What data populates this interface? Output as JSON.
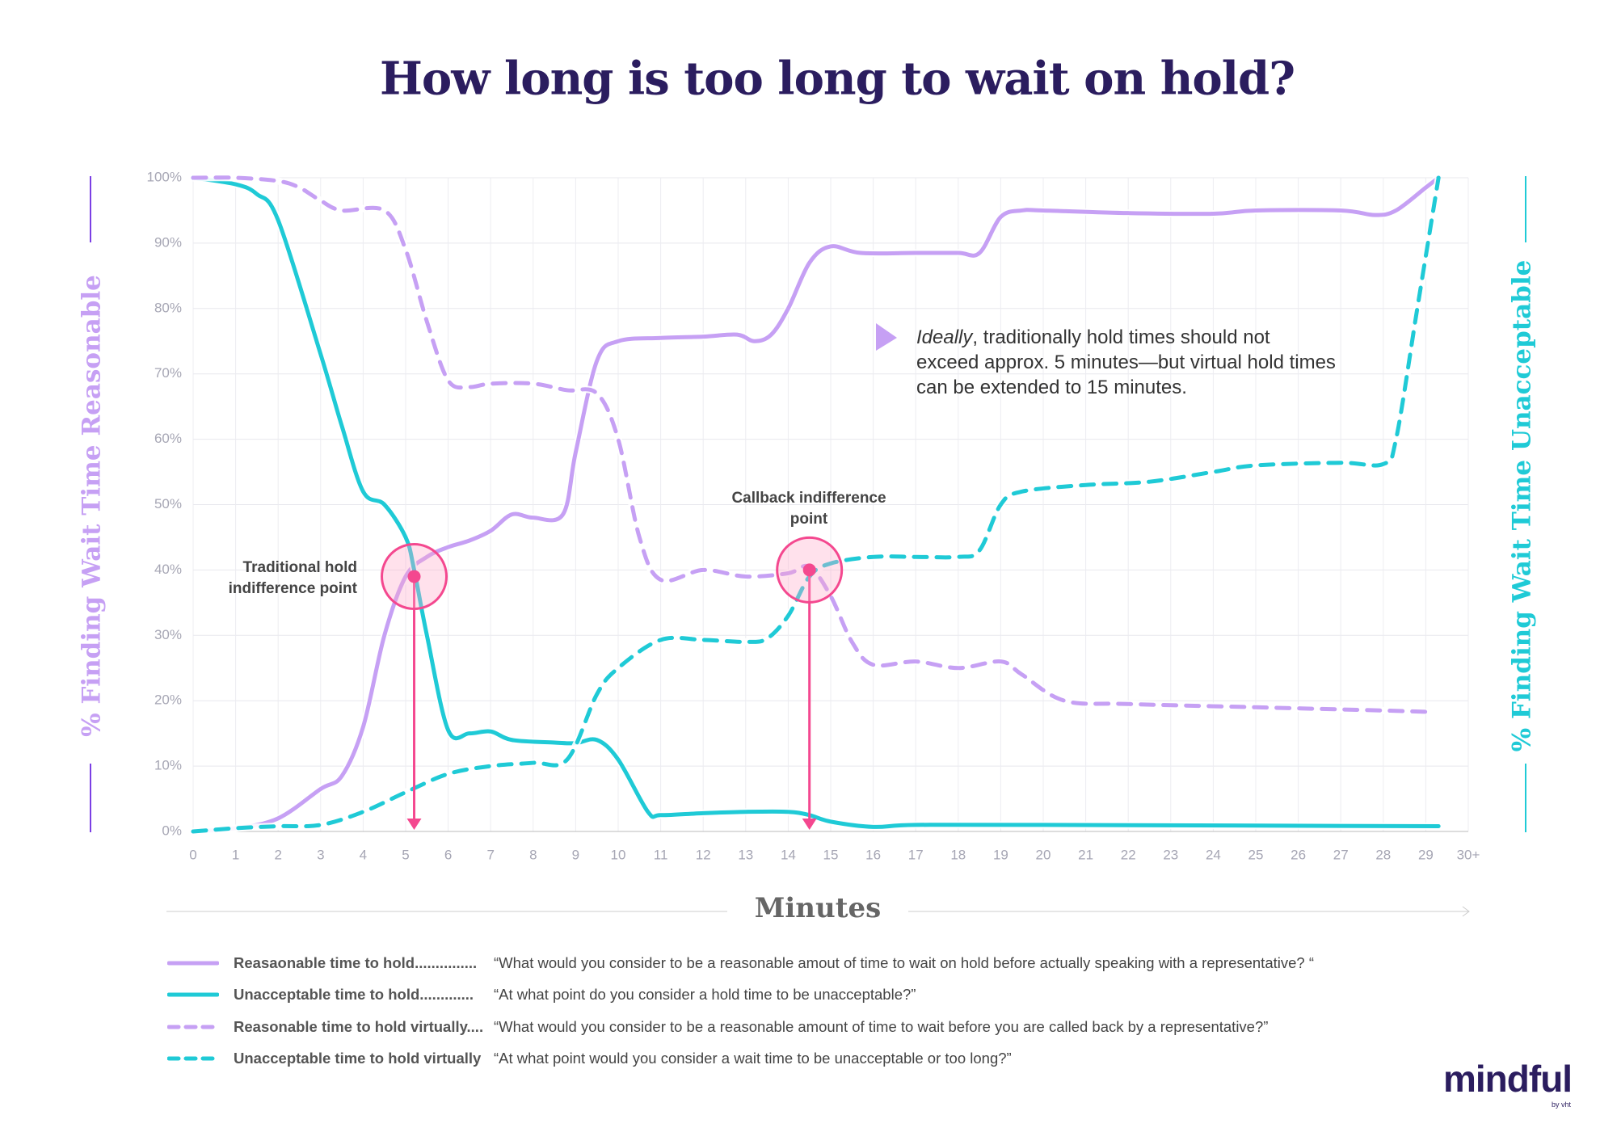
{
  "chart_data": {
    "type": "line",
    "title": "How long is too long to wait on hold?",
    "x_label": "Minutes",
    "y_label": "% Finding Wait Time Reasonable",
    "y2_label": "% Finding Wait Time Unacceptable",
    "xlim": [
      0,
      30
    ],
    "xticks": [
      0,
      1,
      2,
      3,
      4,
      5,
      6,
      7,
      8,
      9,
      10,
      11,
      12,
      13,
      14,
      15,
      16,
      17,
      18,
      19,
      20,
      21,
      22,
      23,
      24,
      25,
      26,
      27,
      28,
      29,
      {
        "value": 30,
        "label": "30+"
      }
    ],
    "ylim": [
      0,
      100
    ],
    "yticks": [
      {
        "value": 0,
        "label": "0%"
      },
      {
        "value": 10,
        "label": "10%"
      },
      {
        "value": 20,
        "label": "20%"
      },
      {
        "value": 30,
        "label": "30%"
      },
      {
        "value": 40,
        "label": "40%"
      },
      {
        "value": 50,
        "label": "50%"
      },
      {
        "value": 60,
        "label": "60%"
      },
      {
        "value": 70,
        "label": "70%"
      },
      {
        "value": 80,
        "label": "80%"
      },
      {
        "value": 90,
        "label": "90%"
      },
      {
        "value": 100,
        "label": "100%"
      }
    ],
    "grid": true,
    "series": [
      {
        "name": "Reasaonable time to hold...............",
        "description": "“What would you consider to be a reasonable amout of time to wait on hold before actually speaking with a representative? “",
        "color": "#c6a0f4",
        "dashed": false,
        "x": [
          0,
          1,
          2,
          3,
          3.5,
          4,
          4.5,
          5,
          5.5,
          6,
          6.5,
          7,
          7.5,
          8,
          8.7,
          9,
          9.5,
          10,
          11,
          12,
          12.8,
          13.2,
          13.6,
          14,
          14.5,
          15,
          15.7,
          17,
          18,
          18.5,
          19,
          19.5,
          20,
          22,
          24,
          25,
          27,
          27.8,
          28.3,
          29,
          29.3
        ],
        "values": [
          0,
          0.5,
          2,
          6.5,
          8.5,
          16,
          30,
          39,
          42,
          43.5,
          44.5,
          46,
          48.5,
          48,
          48.5,
          58,
          72,
          75,
          75.5,
          75.7,
          76,
          75,
          76,
          80,
          87,
          89.5,
          88.5,
          88.5,
          88.5,
          88.5,
          94,
          95,
          95,
          94.6,
          94.5,
          95,
          95,
          94.3,
          95,
          98.5,
          100
        ]
      },
      {
        "name": "Unacceptable time to hold.............",
        "description": "“At what point do you consider a hold time to be unacceptable?”",
        "color": "#1fcad6",
        "dashed": false,
        "x": [
          0,
          1,
          1.5,
          2,
          3,
          3.5,
          4,
          4.5,
          5,
          5.2,
          5.5,
          6,
          6.5,
          7,
          7.5,
          8.5,
          9,
          9.5,
          10,
          10.7,
          11,
          12,
          13,
          14,
          14.5,
          15,
          16,
          17,
          20,
          29.3
        ],
        "values": [
          100,
          99,
          97.5,
          93.5,
          73,
          62,
          52,
          50,
          45,
          40,
          30,
          15.5,
          15,
          15.3,
          14,
          13.6,
          13.5,
          14,
          11,
          3,
          2.5,
          2.8,
          3,
          3,
          2.5,
          1.5,
          0.7,
          1,
          1,
          0.8
        ]
      },
      {
        "name": "Reasonable time to hold virtually....",
        "description": "“What would you consider to be a reasonable amount of time to wait before you are called back by a representative?”",
        "color": "#c6a0f4",
        "dashed": true,
        "x": [
          0,
          1,
          2,
          2.5,
          3,
          3.5,
          4.5,
          5,
          5.5,
          6,
          6.5,
          7,
          8,
          8.8,
          9.5,
          10,
          10.5,
          11,
          12,
          13,
          14,
          14.5,
          15,
          15.5,
          16,
          17,
          18,
          19,
          19.5,
          20.5,
          22,
          25,
          28,
          29
        ],
        "values": [
          100,
          100,
          99.5,
          98.5,
          96.5,
          95,
          95,
          89,
          78,
          69,
          68,
          68.5,
          68.5,
          67.5,
          67,
          60,
          45,
          38.5,
          40,
          39,
          39.5,
          40.5,
          36,
          29,
          25.5,
          26,
          25,
          26,
          24,
          20,
          19.5,
          19,
          18.5,
          18.3
        ]
      },
      {
        "name": "Unacceptable time to hold virtually",
        "description": "“At what point would you consider a wait time to be unacceptable or too long?”",
        "color": "#1fcad6",
        "dashed": true,
        "x": [
          0,
          1,
          2,
          3,
          4,
          5,
          6,
          7,
          8,
          8.8,
          9.5,
          10,
          11,
          12,
          13,
          13.5,
          14,
          14.5,
          15,
          16,
          17,
          18,
          18.5,
          19,
          19.5,
          21,
          22.5,
          24,
          25,
          27,
          28,
          28.3,
          28.8,
          29.3
        ],
        "values": [
          0,
          0.5,
          0.8,
          1,
          3,
          6,
          8.8,
          10,
          10.5,
          11,
          21,
          25,
          29.3,
          29.3,
          29,
          29.5,
          33,
          39,
          41,
          42,
          42,
          42,
          43,
          50,
          52,
          53,
          53.5,
          55,
          56,
          56.4,
          56.2,
          60,
          80,
          100
        ]
      }
    ],
    "annotations": [
      {
        "text": "Traditional hold indifference point",
        "x": 5.2,
        "y": 39
      },
      {
        "text": "Callback indifference point",
        "x": 14.5,
        "y": 40
      }
    ],
    "note": {
      "emphasis": "Ideally",
      "text": ", traditionally hold times should not exceed approx. 5 minutes—but virtual hold times can be extended to 15 minutes."
    },
    "logo": {
      "name": "mindful",
      "byline": "by vht"
    }
  }
}
